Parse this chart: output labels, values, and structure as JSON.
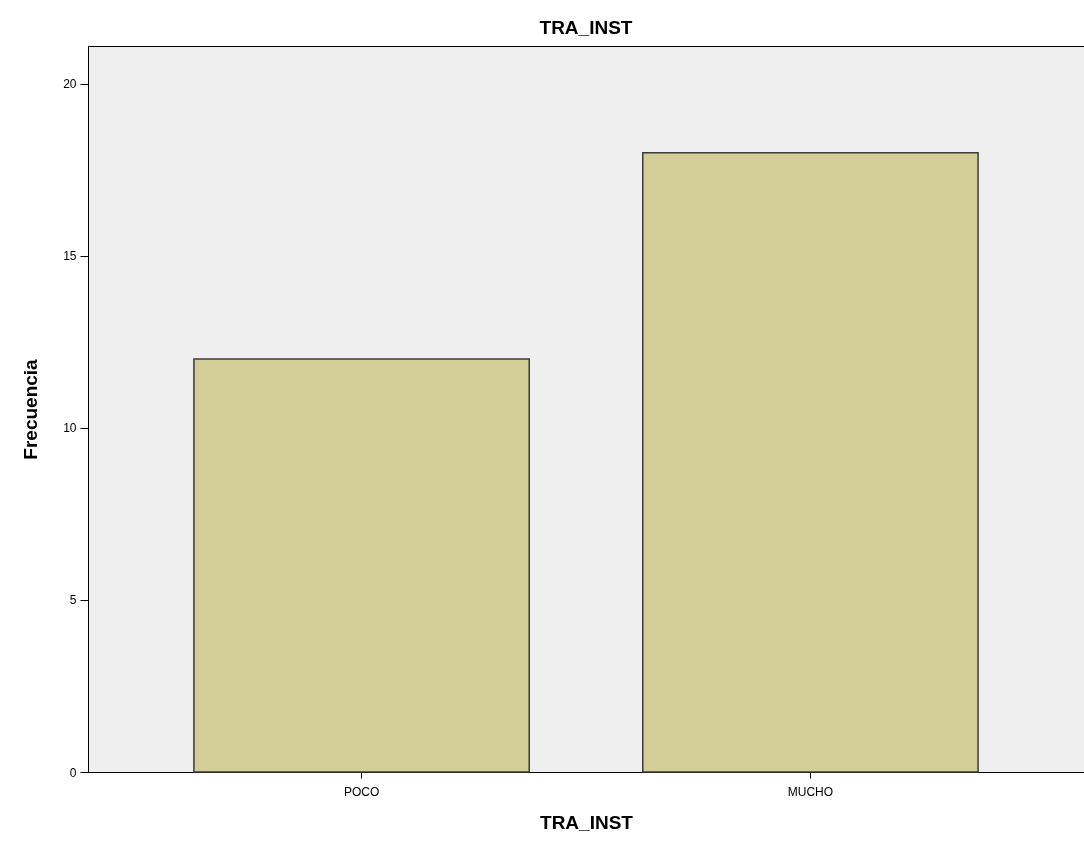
{
  "chart_data": {
    "type": "bar",
    "title": "TRA_INST",
    "xlabel": "TRA_INST",
    "ylabel": "Frecuencia",
    "categories": [
      "POCO",
      "MUCHO"
    ],
    "values": [
      12,
      18
    ],
    "color": "#d3ce97",
    "ylim": [
      0,
      21.1
    ],
    "yticks": [
      0,
      5,
      10,
      15,
      20
    ],
    "grid": false
  }
}
